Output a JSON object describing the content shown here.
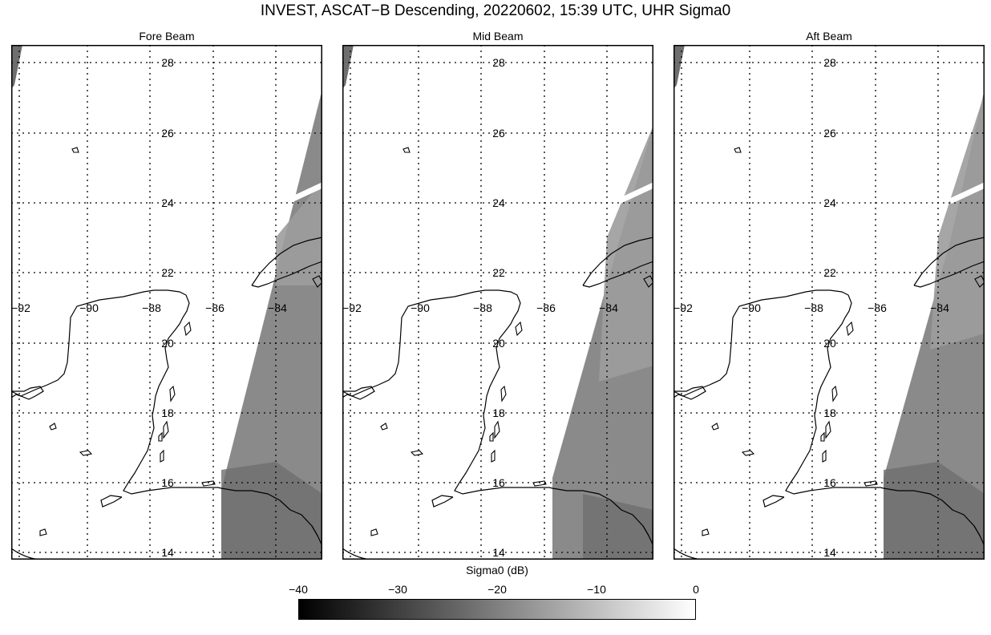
{
  "title": "INVEST, ASCAT−B Descending, 20220602, 15:39 UTC, UHR Sigma0",
  "panels": [
    {
      "title": "Fore Beam"
    },
    {
      "title": "Mid Beam"
    },
    {
      "title": "Aft Beam"
    }
  ],
  "lat_labels": [
    "28",
    "26",
    "24",
    "22",
    "20",
    "18",
    "16",
    "14"
  ],
  "lon_labels": [
    "−92",
    "−90",
    "−88",
    "−86",
    "−84"
  ],
  "colorbar": {
    "label": "Sigma0 (dB)",
    "ticks": [
      "−40",
      "−30",
      "−20",
      "−10",
      "0"
    ],
    "range": [
      -40,
      0
    ],
    "colors": [
      "#000000",
      "#ffffff"
    ]
  },
  "colors": {
    "swath_dark": "#6e6e6e",
    "swath_mid": "#8a8a8a",
    "swath_light": "#9c9c9c",
    "coastline": "#000000"
  }
}
